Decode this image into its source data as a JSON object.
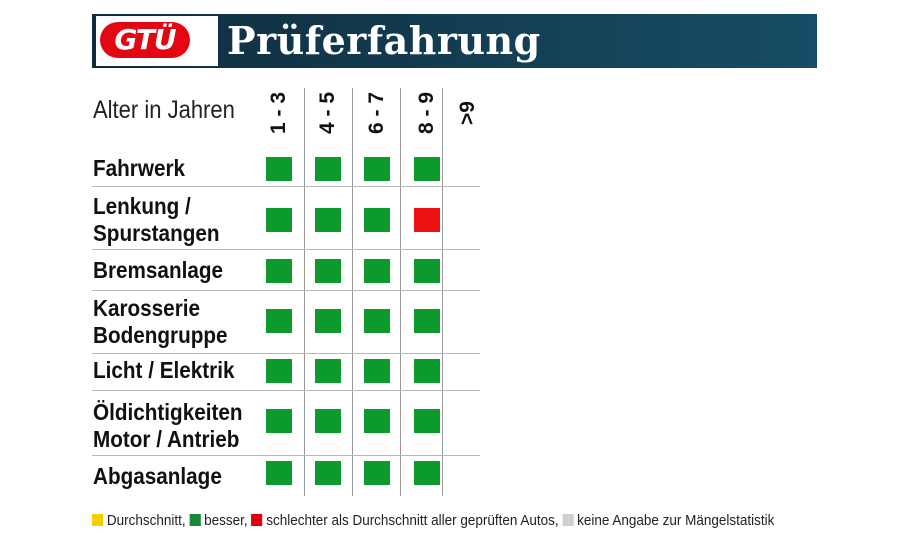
{
  "header": {
    "logo_text": "GTÜ",
    "title": "Prüferfahrung"
  },
  "chart_data": {
    "type": "table",
    "axis_label": "Alter in Jahren",
    "columns": [
      "1 - 3",
      "4 - 5",
      "6 - 7",
      "8 - 9",
      ">9"
    ],
    "rows": [
      {
        "label": "Fahrwerk",
        "values": [
          "besser",
          "besser",
          "besser",
          "besser",
          null
        ]
      },
      {
        "label": "Lenkung /\nSpurstangen",
        "values": [
          "besser",
          "besser",
          "besser",
          "schlechter",
          null
        ]
      },
      {
        "label": "Bremsanlage",
        "values": [
          "besser",
          "besser",
          "besser",
          "besser",
          null
        ]
      },
      {
        "label": "Karosserie\nBodengruppe",
        "values": [
          "besser",
          "besser",
          "besser",
          "besser",
          null
        ]
      },
      {
        "label": "Licht / Elektrik",
        "values": [
          "besser",
          "besser",
          "besser",
          "besser",
          null
        ]
      },
      {
        "label": "Öldichtigkeiten\nMotor / Antrieb",
        "values": [
          "besser",
          "besser",
          "besser",
          "besser",
          null
        ]
      },
      {
        "label": "Abgasanlage",
        "values": [
          "besser",
          "besser",
          "besser",
          "besser",
          null
        ]
      }
    ],
    "legend": [
      {
        "key": "durchschnitt",
        "label": "Durchschnitt,",
        "color": "#f5d000"
      },
      {
        "key": "besser",
        "label": "besser,",
        "color": "#1a8a3a"
      },
      {
        "key": "schlechter",
        "label": "schlechter als Durchschnitt aller geprüften Autos,",
        "color": "#e3000f"
      },
      {
        "key": "keine_angabe",
        "label": "keine Angabe zur Mängelstatistik",
        "color": "#cfcfcf"
      }
    ],
    "colors": {
      "besser": "#0b9a2b",
      "schlechter": "#ee1111",
      "durchschnitt": "#f5d000",
      "keine_angabe": "#cfcfcf"
    }
  }
}
